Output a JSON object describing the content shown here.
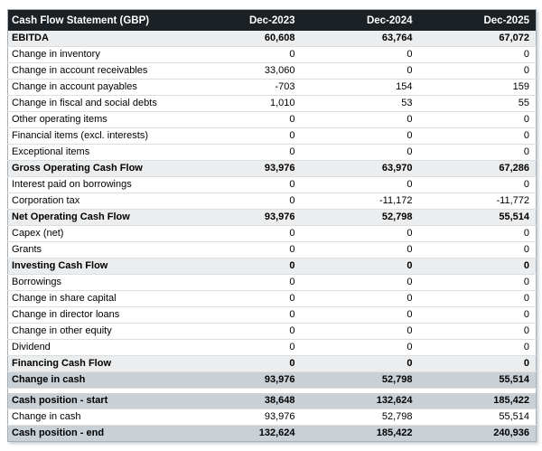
{
  "table": {
    "title": "Cash Flow Statement (GBP)",
    "columns": [
      "Dec-2023",
      "Dec-2024",
      "Dec-2025"
    ],
    "rows": [
      {
        "label": "EBITDA",
        "values": [
          "60,608",
          "63,764",
          "67,072"
        ],
        "style": "total"
      },
      {
        "label": "Change in inventory",
        "values": [
          "0",
          "0",
          "0"
        ],
        "style": "normal"
      },
      {
        "label": "Change in account receivables",
        "values": [
          "33,060",
          "0",
          "0"
        ],
        "style": "normal"
      },
      {
        "label": "Change in account payables",
        "values": [
          "-703",
          "154",
          "159"
        ],
        "style": "normal"
      },
      {
        "label": "Change in fiscal and social debts",
        "values": [
          "1,010",
          "53",
          "55"
        ],
        "style": "normal"
      },
      {
        "label": "Other operating items",
        "values": [
          "0",
          "0",
          "0"
        ],
        "style": "normal"
      },
      {
        "label": "Financial items (excl. interests)",
        "values": [
          "0",
          "0",
          "0"
        ],
        "style": "normal"
      },
      {
        "label": "Exceptional items",
        "values": [
          "0",
          "0",
          "0"
        ],
        "style": "normal"
      },
      {
        "label": "Gross Operating Cash Flow",
        "values": [
          "93,976",
          "63,970",
          "67,286"
        ],
        "style": "total"
      },
      {
        "label": "Interest paid on borrowings",
        "values": [
          "0",
          "0",
          "0"
        ],
        "style": "normal"
      },
      {
        "label": "Corporation tax",
        "values": [
          "0",
          "-11,172",
          "-11,772"
        ],
        "style": "normal"
      },
      {
        "label": "Net Operating Cash Flow",
        "values": [
          "93,976",
          "52,798",
          "55,514"
        ],
        "style": "total"
      },
      {
        "label": "Capex (net)",
        "values": [
          "0",
          "0",
          "0"
        ],
        "style": "normal"
      },
      {
        "label": "Grants",
        "values": [
          "0",
          "0",
          "0"
        ],
        "style": "normal"
      },
      {
        "label": "Investing Cash Flow",
        "values": [
          "0",
          "0",
          "0"
        ],
        "style": "total"
      },
      {
        "label": "Borrowings",
        "values": [
          "0",
          "0",
          "0"
        ],
        "style": "normal"
      },
      {
        "label": "Change in share capital",
        "values": [
          "0",
          "0",
          "0"
        ],
        "style": "normal"
      },
      {
        "label": "Change in director loans",
        "values": [
          "0",
          "0",
          "0"
        ],
        "style": "normal"
      },
      {
        "label": "Change in other equity",
        "values": [
          "0",
          "0",
          "0"
        ],
        "style": "normal"
      },
      {
        "label": "Dividend",
        "values": [
          "0",
          "0",
          "0"
        ],
        "style": "normal"
      },
      {
        "label": "Financing Cash Flow",
        "values": [
          "0",
          "0",
          "0"
        ],
        "style": "total"
      },
      {
        "label": "Change in cash",
        "values": [
          "93,976",
          "52,798",
          "55,514"
        ],
        "style": "highlight"
      },
      {
        "label": "Cash position - start",
        "values": [
          "38,648",
          "132,624",
          "185,422"
        ],
        "style": "highlight",
        "gap_before": true
      },
      {
        "label": "Change in cash",
        "values": [
          "93,976",
          "52,798",
          "55,514"
        ],
        "style": "normal"
      },
      {
        "label": "Cash position - end",
        "values": [
          "132,624",
          "185,422",
          "240,936"
        ],
        "style": "highlight"
      }
    ],
    "colors": {
      "header_bg": "#1c2126",
      "header_text": "#ffffff",
      "total_row_bg": "#ebedee",
      "highlight_row_bg": "#c9d0d6",
      "row_border": "#dcdfe1",
      "outer_border": "#a6aeb6"
    }
  }
}
